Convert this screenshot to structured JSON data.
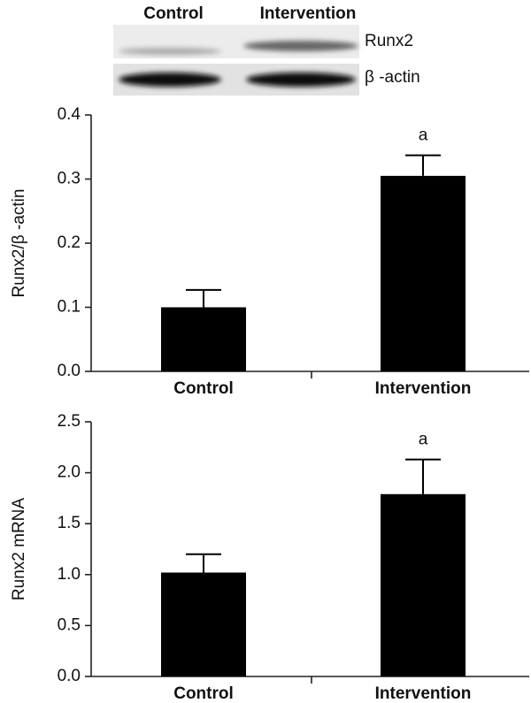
{
  "blot": {
    "columns": [
      "Control",
      "Intervention"
    ],
    "rows": [
      "Runx2",
      "β -actin"
    ]
  },
  "chart_data": [
    {
      "type": "bar",
      "ylabel": "Runx2/β -actin",
      "categories": [
        "Control",
        "Intervention"
      ],
      "values": [
        0.1,
        0.305
      ],
      "errors": [
        0.027,
        0.032
      ],
      "annotations": [
        null,
        "a"
      ],
      "color": "#000000",
      "ylim": [
        0,
        0.4
      ],
      "yticks": [
        {
          "value": 0,
          "label": "0.0"
        },
        0.1,
        0.2,
        0.3,
        0.4
      ]
    },
    {
      "type": "bar",
      "ylabel": "Runx2 mRNA",
      "categories": [
        "Control",
        "Intervention"
      ],
      "values": [
        1.02,
        1.79
      ],
      "errors": [
        0.18,
        0.34
      ],
      "annotations": [
        null,
        "a"
      ],
      "color": "#000000",
      "ylim": [
        0,
        2.5
      ],
      "yticks": [
        {
          "value": 0,
          "label": "0.0"
        },
        0.5,
        {
          "value": 1,
          "label": "1.0"
        },
        1.5,
        {
          "value": 2,
          "label": "2.0"
        },
        2.5
      ]
    }
  ]
}
